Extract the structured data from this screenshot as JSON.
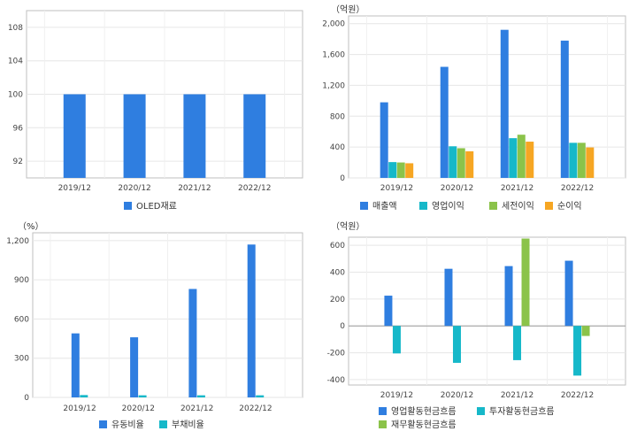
{
  "chart_data": [
    {
      "type": "bar",
      "unit_label": "",
      "categories": [
        "2019/12",
        "2020/12",
        "2021/12",
        "2022/12"
      ],
      "series": [
        {
          "name": "OLED재료",
          "values": [
            100,
            100,
            100,
            100
          ],
          "color": "#2f7ee0"
        }
      ],
      "ylim": [
        90,
        110
      ],
      "yticks": [
        92,
        96,
        100,
        104,
        108
      ],
      "yticks_labels": [
        "92",
        "96",
        "100",
        "104",
        "108"
      ],
      "grid": true,
      "legend": "bottom"
    },
    {
      "type": "bar",
      "unit_label": "（억원）",
      "categories": [
        "2019/12",
        "2020/12",
        "2021/12",
        "2022/12"
      ],
      "series": [
        {
          "name": "매출액",
          "values": [
            980,
            1440,
            1920,
            1780
          ],
          "color": "#2f7ee0"
        },
        {
          "name": "영업이익",
          "values": [
            205,
            410,
            515,
            455
          ],
          "color": "#16b8c9"
        },
        {
          "name": "세전이익",
          "values": [
            200,
            385,
            560,
            455
          ],
          "color": "#8bc34a"
        },
        {
          "name": "순이익",
          "values": [
            190,
            345,
            470,
            395
          ],
          "color": "#f6a623"
        }
      ],
      "ylim": [
        0,
        2100
      ],
      "yticks": [
        0,
        400,
        800,
        1200,
        1600,
        2000
      ],
      "yticks_labels": [
        "0",
        "400",
        "800",
        "1,200",
        "1,600",
        "2,000"
      ],
      "grid": true,
      "legend": "bottom"
    },
    {
      "type": "bar",
      "unit_label": "（%）",
      "categories": [
        "2019/12",
        "2020/12",
        "2021/12",
        "2022/12"
      ],
      "series": [
        {
          "name": "유동비율",
          "values": [
            490,
            460,
            830,
            1170
          ],
          "color": "#2f7ee0"
        },
        {
          "name": "부채비율",
          "values": [
            18,
            16,
            16,
            16
          ],
          "color": "#16b8c9"
        }
      ],
      "ylim": [
        0,
        1260
      ],
      "yticks": [
        0,
        300,
        600,
        900,
        1200
      ],
      "yticks_labels": [
        "0",
        "300",
        "600",
        "900",
        "1,200"
      ],
      "grid": true,
      "legend": "bottom"
    },
    {
      "type": "bar",
      "unit_label": "（억원）",
      "categories": [
        "2019/12",
        "2020/12",
        "2021/12",
        "2022/12"
      ],
      "series": [
        {
          "name": "영업활동현금흐름",
          "values": [
            225,
            425,
            445,
            485
          ],
          "color": "#2f7ee0"
        },
        {
          "name": "투자활동현금흐름",
          "values": [
            -205,
            -275,
            -255,
            -370
          ],
          "color": "#16b8c9"
        },
        {
          "name": "재무활동현금흐름",
          "values": [
            0,
            0,
            650,
            -75
          ],
          "color": "#8bc34a"
        }
      ],
      "ylim": [
        -440,
        660
      ],
      "yticks": [
        -400,
        -200,
        0,
        200,
        400,
        600
      ],
      "yticks_labels": [
        "-400",
        "-200",
        "0",
        "200",
        "400",
        "600"
      ],
      "grid": true,
      "legend": "bottom"
    }
  ]
}
